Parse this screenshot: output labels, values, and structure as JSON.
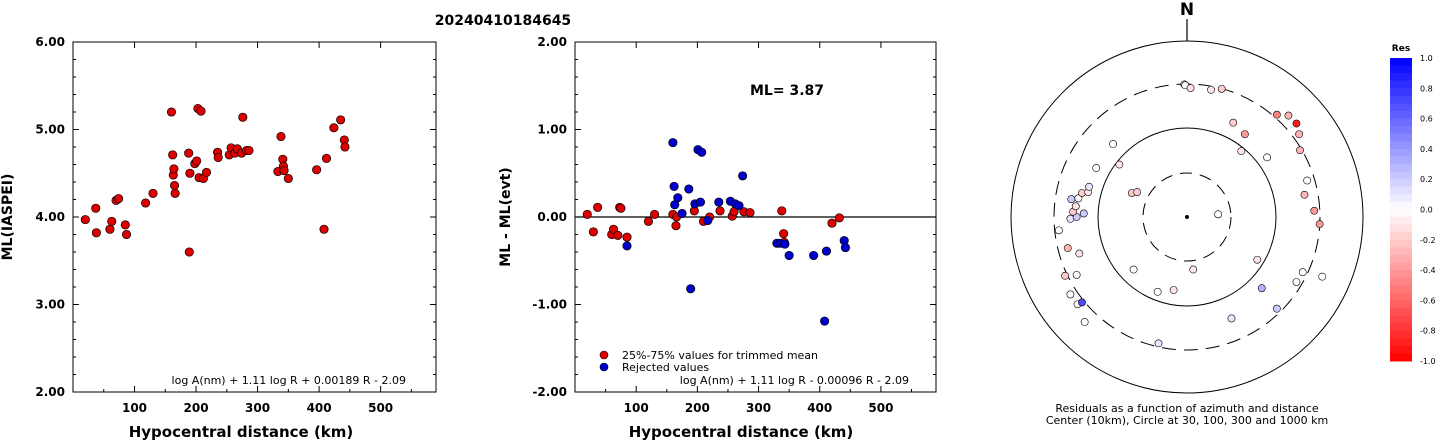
{
  "title": "20240410184645",
  "chart_data": [
    {
      "type": "scatter",
      "ylabel": "ML(IASPEI)",
      "xlabel": "Hypocentral distance (km)",
      "xlim": [
        0,
        590
      ],
      "ylim": [
        2.0,
        6.0
      ],
      "xticks": [
        "100",
        "200",
        "300",
        "400",
        "500"
      ],
      "xtick_values": [
        100,
        200,
        300,
        400,
        500
      ],
      "yticks": [
        "2.00",
        "3.00",
        "4.00",
        "5.00",
        "6.00"
      ],
      "ytick_values": [
        2,
        3,
        4,
        5,
        6
      ],
      "formula": "log A(nm) + 1.11 log R + 0.00189 R - 2.09",
      "point_color": "#dd0000",
      "points": [
        [
          20,
          3.97
        ],
        [
          37,
          4.1
        ],
        [
          38,
          3.82
        ],
        [
          60,
          3.86
        ],
        [
          63,
          3.95
        ],
        [
          70,
          4.19
        ],
        [
          74,
          4.21
        ],
        [
          85,
          3.91
        ],
        [
          87,
          3.8
        ],
        [
          118,
          4.16
        ],
        [
          130,
          4.27
        ],
        [
          160,
          5.2
        ],
        [
          162,
          4.71
        ],
        [
          163,
          4.48
        ],
        [
          164,
          4.55
        ],
        [
          165,
          4.36
        ],
        [
          166,
          4.27
        ],
        [
          188,
          4.73
        ],
        [
          189,
          3.6
        ],
        [
          190,
          4.5
        ],
        [
          198,
          4.61
        ],
        [
          201,
          4.64
        ],
        [
          203,
          5.24
        ],
        [
          205,
          4.45
        ],
        [
          208,
          5.21
        ],
        [
          212,
          4.44
        ],
        [
          217,
          4.51
        ],
        [
          235,
          4.74
        ],
        [
          236,
          4.68
        ],
        [
          254,
          4.71
        ],
        [
          257,
          4.79
        ],
        [
          263,
          4.73
        ],
        [
          267,
          4.78
        ],
        [
          274,
          4.73
        ],
        [
          276,
          5.14
        ],
        [
          282,
          4.76
        ],
        [
          286,
          4.76
        ],
        [
          333,
          4.52
        ],
        [
          338,
          4.92
        ],
        [
          341,
          4.66
        ],
        [
          342,
          4.58
        ],
        [
          343,
          4.53
        ],
        [
          350,
          4.44
        ],
        [
          396,
          4.54
        ],
        [
          408,
          3.86
        ],
        [
          412,
          4.67
        ],
        [
          424,
          5.02
        ],
        [
          435,
          5.11
        ],
        [
          441,
          4.88
        ],
        [
          442,
          4.8
        ]
      ]
    },
    {
      "type": "scatter",
      "ylabel": "ML - ML(evt)",
      "xlabel": "Hypocentral distance (km)",
      "xlim": [
        0,
        590
      ],
      "ylim": [
        -2.0,
        2.0
      ],
      "xticks": [
        "100",
        "200",
        "300",
        "400",
        "500"
      ],
      "xtick_values": [
        100,
        200,
        300,
        400,
        500
      ],
      "yticks": [
        "-2.00",
        "-1.00",
        "0.00",
        "1.00",
        "2.00"
      ],
      "ytick_values": [
        -2,
        -1,
        0,
        1,
        2
      ],
      "annotation": "ML= 3.87",
      "formula": "log A(nm) + 1.11 log R - 0.00096 R - 2.09",
      "legend": [
        {
          "label": "25%-75% values for trimmed mean",
          "color": "#dd0000"
        },
        {
          "label": "Rejected values",
          "color": "#0000cc"
        }
      ],
      "series": [
        {
          "color": "#dd0000",
          "points": [
            [
              20,
              0.03
            ],
            [
              30,
              -0.17
            ],
            [
              37,
              0.11
            ],
            [
              60,
              -0.2
            ],
            [
              63,
              -0.14
            ],
            [
              70,
              -0.21
            ],
            [
              73,
              0.11
            ],
            [
              75,
              0.1
            ],
            [
              85,
              -0.23
            ],
            [
              120,
              -0.05
            ],
            [
              130,
              0.03
            ],
            [
              160,
              0.03
            ],
            [
              165,
              -0.1
            ],
            [
              166,
              0.0
            ],
            [
              195,
              0.07
            ],
            [
              210,
              -0.05
            ],
            [
              220,
              0.0
            ],
            [
              237,
              0.07
            ],
            [
              257,
              0.01
            ],
            [
              260,
              0.06
            ],
            [
              276,
              0.06
            ],
            [
              286,
              0.05
            ],
            [
              338,
              0.07
            ],
            [
              341,
              -0.19
            ],
            [
              342,
              -0.29
            ],
            [
              420,
              -0.07
            ],
            [
              432,
              -0.01
            ]
          ]
        },
        {
          "color": "#0000cc",
          "points": [
            [
              85,
              -0.33
            ],
            [
              160,
              0.85
            ],
            [
              162,
              0.35
            ],
            [
              163,
              0.14
            ],
            [
              168,
              0.22
            ],
            [
              175,
              0.04
            ],
            [
              186,
              0.32
            ],
            [
              189,
              -0.82
            ],
            [
              196,
              0.15
            ],
            [
              201,
              0.77
            ],
            [
              207,
              0.74
            ],
            [
              205,
              0.17
            ],
            [
              217,
              -0.04
            ],
            [
              235,
              0.17
            ],
            [
              254,
              0.18
            ],
            [
              262,
              0.15
            ],
            [
              268,
              0.13
            ],
            [
              274,
              0.47
            ],
            [
              330,
              -0.3
            ],
            [
              335,
              -0.3
            ],
            [
              343,
              -0.31
            ],
            [
              350,
              -0.44
            ],
            [
              390,
              -0.44
            ],
            [
              408,
              -1.19
            ],
            [
              411,
              -0.39
            ],
            [
              440,
              -0.27
            ],
            [
              442,
              -0.35
            ]
          ]
        }
      ]
    },
    {
      "type": "scatter",
      "north_label": "N",
      "colorbar_title": "Res",
      "colorbar_ticks": [
        "1.0",
        "0.8",
        "0.6",
        "0.4",
        "0.2",
        "0.0",
        "-0.2",
        "-0.4",
        "-0.6",
        "-0.8",
        "-1.0"
      ],
      "colorbar_values": [
        1.0,
        0.8,
        0.6,
        0.4,
        0.2,
        0.0,
        -0.2,
        -0.4,
        -0.6,
        -0.8,
        -1.0
      ],
      "caption_line1": "Residuals as a function of azimuth and distance",
      "caption_line2": "Center (10km), Circle at 30, 100, 300 and 1000 km",
      "points_dxdy_res": [
        [
          -0.05,
          0.07,
          0.0
        ],
        [
          -0.53,
          0.29,
          0.0
        ],
        [
          -0.06,
          0.44,
          0.0
        ],
        [
          0.32,
          0.23,
          -0.1
        ],
        [
          0.42,
          -0.05,
          0.0
        ],
        [
          0.43,
          0.15,
          0.2
        ],
        [
          0.47,
          0.15,
          0.0
        ],
        [
          0.29,
          0.46,
          0.3
        ],
        [
          0.54,
          -0.13,
          0.0
        ],
        [
          0.62,
          0.03,
          0.0
        ],
        [
          0.64,
          0.26,
          -0.1
        ],
        [
          0.71,
          0.36,
          -0.2
        ],
        [
          0.82,
          0.43,
          -0.5
        ],
        [
          0.92,
          0.29,
          -0.1
        ],
        [
          0.97,
          -0.16,
          -0.1
        ],
        [
          0.99,
          -0.1,
          -0.3
        ],
        [
          1.09,
          -0.25,
          -0.3
        ],
        [
          0.99,
          0.27,
          -0.1
        ],
        [
          1.0,
          0.3,
          -0.4
        ],
        [
          1.02,
          -0.17,
          0.0
        ],
        [
          1.02,
          -0.23,
          -0.3
        ],
        [
          0.94,
          0.55,
          0.0
        ],
        [
          1.0,
          0.55,
          0.0
        ],
        [
          0.78,
          0.77,
          0.0
        ],
        [
          0.91,
          0.54,
          -0.2
        ],
        [
          0.97,
          0.55,
          0.0
        ],
        [
          1.0,
          0.61,
          -0.3
        ],
        [
          0.92,
          0.92,
          -0.1
        ],
        [
          0.97,
          1.0,
          0.2
        ],
        [
          0.99,
          1.0,
          0.1
        ],
        [
          1.03,
          0.96,
          0.0
        ],
        [
          1.05,
          0.91,
          -0.2
        ],
        [
          1.0,
          1.03,
          0.3
        ],
        [
          1.02,
          1.14,
          -0.1
        ],
        [
          1.06,
          1.25,
          -0.4
        ],
        [
          1.04,
          1.27,
          0.1
        ],
        [
          1.03,
          1.33,
          0.0
        ],
        [
          1.03,
          1.38,
          0.2
        ],
        [
          1.21,
          0.71,
          0.0
        ],
        [
          1.24,
          1.28,
          0.0
        ],
        [
          1.31,
          1.4,
          0.0
        ],
        [
          1.26,
          1.41,
          0.2
        ],
        [
          1.19,
          1.53,
          0.0
        ],
        [
          1.08,
          1.76,
          0.0
        ],
        [
          1.09,
          1.79,
          0.7
        ],
        [
          1.12,
          1.85,
          0.0
        ],
        [
          1.04,
          1.96,
          0.0
        ],
        [
          1.48,
          1.33,
          0.0
        ],
        [
          1.36,
          1.41,
          0.0
        ],
        [
          1.56,
          1.06,
          0.0
        ],
        [
          1.59,
          1.18,
          0.0
        ],
        [
          1.66,
          0.91,
          0.3
        ],
        [
          1.69,
          0.81,
          0.0
        ],
        [
          1.66,
          0.84,
          0.0
        ],
        [
          1.47,
          1.11,
          0.0
        ]
      ]
    }
  ]
}
